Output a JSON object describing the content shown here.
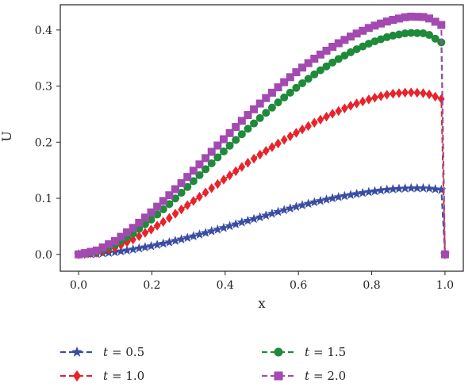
{
  "chart_data": {
    "type": "line",
    "xlabel": "x",
    "ylabel": "U",
    "xlim": [
      -0.05,
      1.05
    ],
    "ylim": [
      -0.03,
      0.445
    ],
    "xticks": [
      0.0,
      0.2,
      0.4,
      0.6,
      0.8,
      1.0
    ],
    "yticks": [
      0.0,
      0.1,
      0.2,
      0.3,
      0.4
    ],
    "legend_position": "bottom",
    "legend_columns": 2,
    "grid": false,
    "series": [
      {
        "name": "t = 0.5",
        "name_var": "t",
        "name_value": "= 0.5",
        "color": "#3a4da3",
        "marker": "star",
        "x": [
          0,
          0.05,
          0.1,
          0.15,
          0.2,
          0.25,
          0.3,
          0.35,
          0.4,
          0.45,
          0.5,
          0.55,
          0.6,
          0.65,
          0.7,
          0.75,
          0.8,
          0.85,
          0.9,
          0.95,
          0.99,
          1.0
        ],
        "y": [
          0.0,
          0.001,
          0.004,
          0.009,
          0.015,
          0.022,
          0.03,
          0.039,
          0.048,
          0.058,
          0.067,
          0.077,
          0.086,
          0.094,
          0.101,
          0.107,
          0.112,
          0.116,
          0.118,
          0.118,
          0.115,
          0.0
        ]
      },
      {
        "name": "t = 1.0",
        "name_var": "t",
        "name_value": "= 1.0",
        "color": "#e8232a",
        "marker": "diamond",
        "x": [
          0,
          0.05,
          0.1,
          0.15,
          0.2,
          0.25,
          0.3,
          0.35,
          0.4,
          0.45,
          0.5,
          0.55,
          0.6,
          0.65,
          0.7,
          0.75,
          0.8,
          0.85,
          0.9,
          0.95,
          0.99,
          1.0
        ],
        "y": [
          0.0,
          0.003,
          0.012,
          0.027,
          0.045,
          0.066,
          0.089,
          0.112,
          0.135,
          0.158,
          0.18,
          0.2,
          0.219,
          0.237,
          0.253,
          0.267,
          0.278,
          0.286,
          0.289,
          0.287,
          0.277,
          0.0
        ]
      },
      {
        "name": "t = 1.5",
        "name_var": "t",
        "name_value": "= 1.5",
        "color": "#1e8a3a",
        "marker": "circle",
        "x": [
          0,
          0.05,
          0.1,
          0.15,
          0.2,
          0.25,
          0.3,
          0.35,
          0.4,
          0.45,
          0.5,
          0.55,
          0.6,
          0.65,
          0.7,
          0.75,
          0.8,
          0.85,
          0.9,
          0.95,
          0.99,
          1.0
        ],
        "y": [
          0.0,
          0.005,
          0.018,
          0.038,
          0.063,
          0.091,
          0.122,
          0.154,
          0.186,
          0.217,
          0.246,
          0.274,
          0.3,
          0.324,
          0.345,
          0.363,
          0.378,
          0.389,
          0.395,
          0.394,
          0.378,
          0.0
        ]
      },
      {
        "name": "t = 2.0",
        "name_var": "t",
        "name_value": "= 2.0",
        "color": "#a24ab0",
        "marker": "square",
        "x": [
          0,
          0.05,
          0.1,
          0.15,
          0.2,
          0.25,
          0.3,
          0.35,
          0.4,
          0.45,
          0.5,
          0.55,
          0.6,
          0.65,
          0.7,
          0.75,
          0.8,
          0.85,
          0.9,
          0.95,
          0.99,
          1.0
        ],
        "y": [
          0.0,
          0.007,
          0.024,
          0.048,
          0.076,
          0.107,
          0.14,
          0.174,
          0.208,
          0.241,
          0.272,
          0.301,
          0.328,
          0.352,
          0.373,
          0.391,
          0.406,
          0.417,
          0.424,
          0.423,
          0.409,
          0.0
        ]
      }
    ]
  }
}
